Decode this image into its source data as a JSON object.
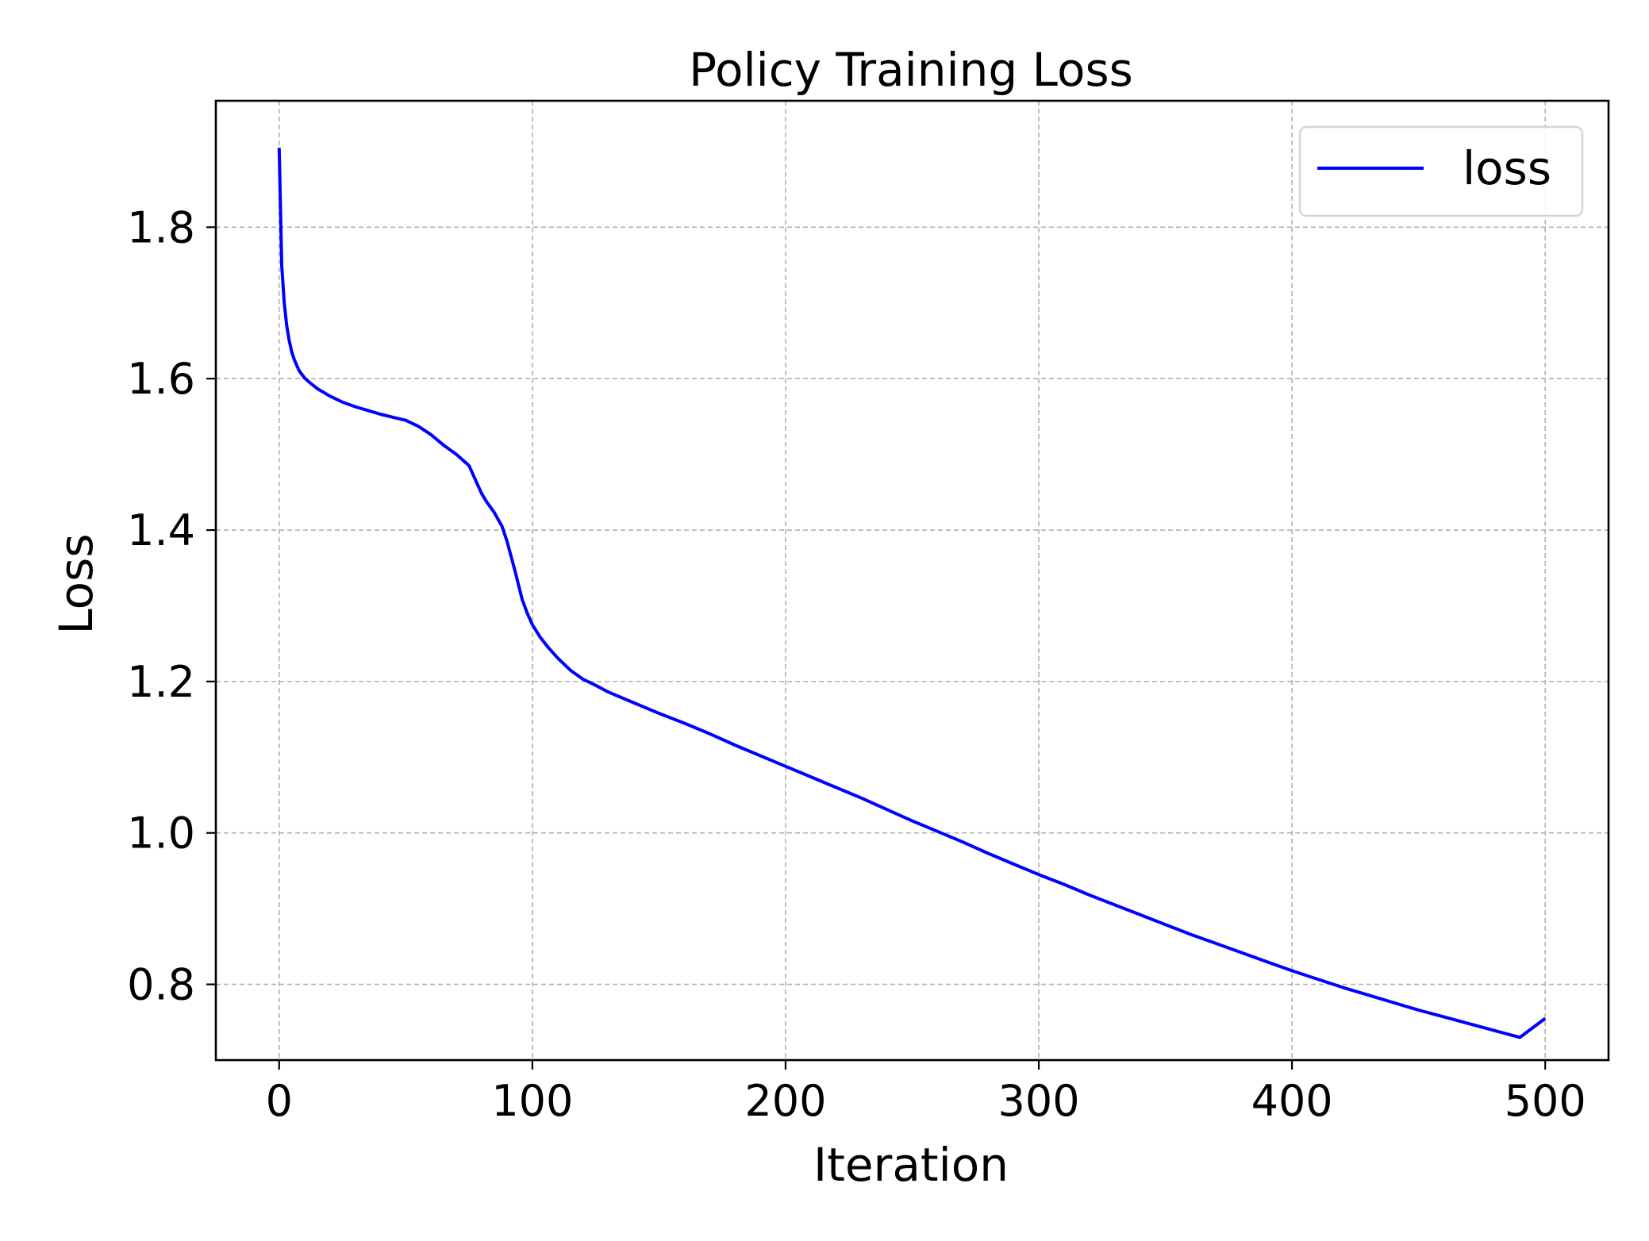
{
  "chart_data": {
    "type": "line",
    "title": "Policy Training Loss",
    "xlabel": "Iteration",
    "ylabel": "Loss",
    "xlim": [
      -25,
      525
    ],
    "ylim": [
      0.7,
      1.967
    ],
    "x_ticks": [
      0,
      100,
      200,
      300,
      400,
      500
    ],
    "y_ticks": [
      0.8,
      1.0,
      1.2,
      1.4,
      1.6,
      1.8
    ],
    "x_tick_labels": [
      "0",
      "100",
      "200",
      "300",
      "400",
      "500"
    ],
    "y_tick_labels": [
      "0.8",
      "1.0",
      "1.2",
      "1.4",
      "1.6",
      "1.8"
    ],
    "grid": true,
    "legend_position": "top-right",
    "series": [
      {
        "name": "loss",
        "color": "#0000ff",
        "x": [
          0,
          1,
          2,
          3,
          4,
          5,
          6,
          7,
          8,
          10,
          12,
          15,
          20,
          25,
          30,
          35,
          40,
          45,
          50,
          55,
          60,
          65,
          70,
          75,
          77,
          80,
          82,
          85,
          88,
          90,
          93,
          96,
          98,
          100,
          103,
          106,
          110,
          115,
          120,
          125,
          130,
          140,
          150,
          160,
          170,
          180,
          190,
          200,
          210,
          220,
          230,
          240,
          250,
          260,
          270,
          280,
          290,
          300,
          310,
          320,
          330,
          340,
          350,
          360,
          370,
          380,
          390,
          400,
          410,
          420,
          430,
          440,
          450,
          460,
          470,
          480,
          490,
          500
        ],
        "values": [
          1.905,
          1.75,
          1.7,
          1.67,
          1.65,
          1.635,
          1.625,
          1.617,
          1.61,
          1.601,
          1.595,
          1.587,
          1.577,
          1.569,
          1.563,
          1.558,
          1.553,
          1.549,
          1.545,
          1.537,
          1.526,
          1.512,
          1.5,
          1.485,
          1.47,
          1.448,
          1.437,
          1.423,
          1.405,
          1.385,
          1.348,
          1.308,
          1.29,
          1.275,
          1.259,
          1.246,
          1.231,
          1.215,
          1.203,
          1.195,
          1.186,
          1.172,
          1.158,
          1.145,
          1.131,
          1.116,
          1.102,
          1.088,
          1.074,
          1.06,
          1.046,
          1.031,
          1.016,
          1.002,
          0.988,
          0.973,
          0.959,
          0.945,
          0.932,
          0.918,
          0.905,
          0.892,
          0.879,
          0.866,
          0.854,
          0.842,
          0.83,
          0.818,
          0.807,
          0.796,
          0.786,
          0.776,
          0.766,
          0.757,
          0.748,
          0.739,
          0.73,
          0.755
        ]
      }
    ]
  }
}
